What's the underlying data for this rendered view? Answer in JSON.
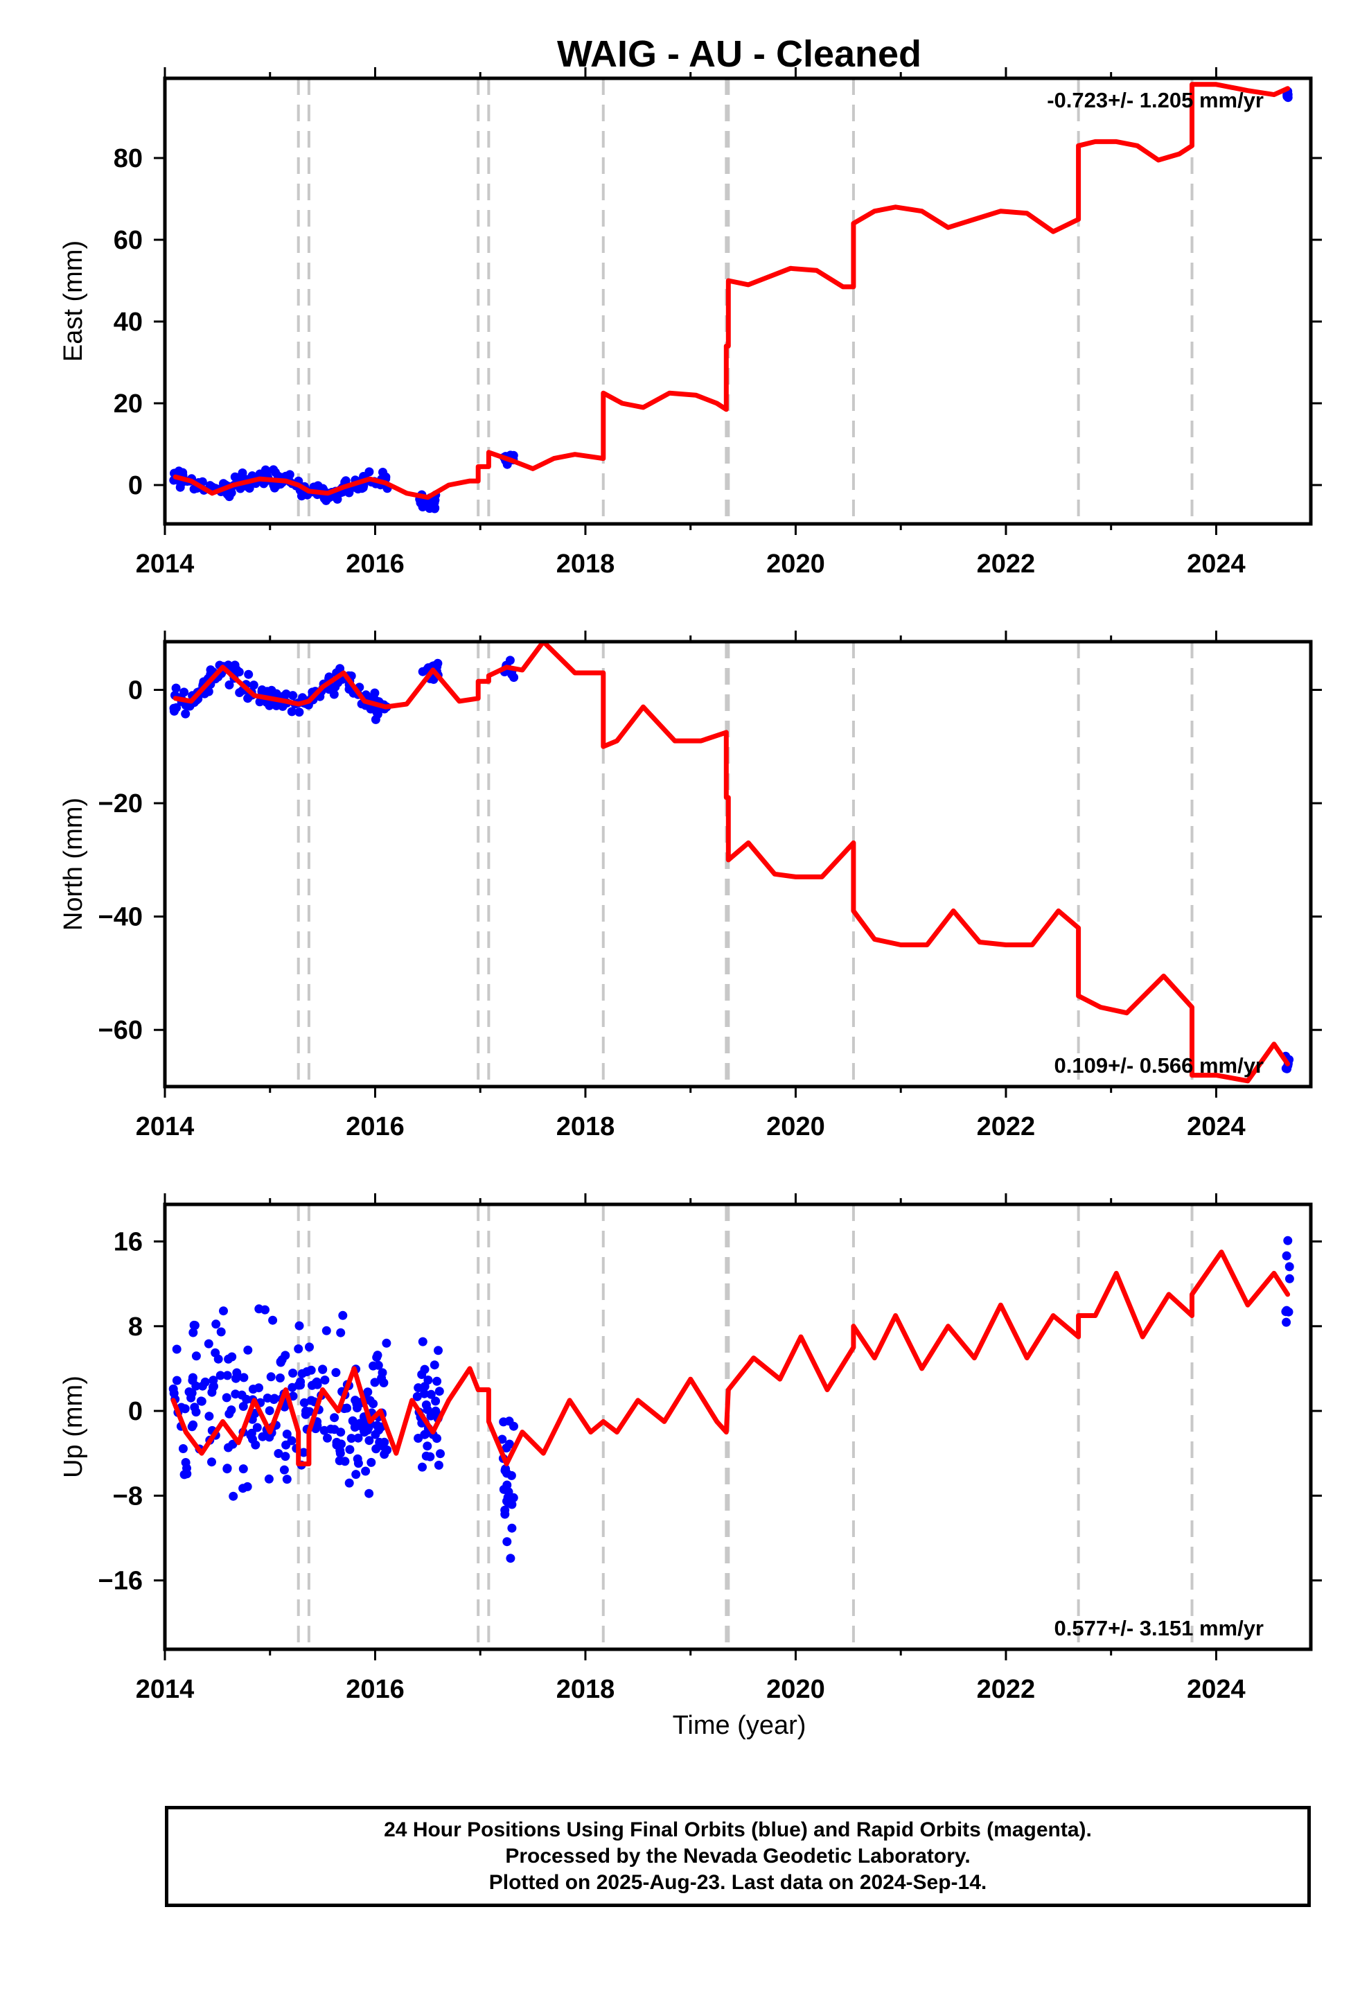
{
  "chart_data": {
    "type": "scatter",
    "title": "WAIG  - AU - Cleaned",
    "xlabel": "Time (year)",
    "xlim": [
      2014.0,
      2024.9
    ],
    "x_ticks": [
      "2014",
      "2016",
      "2018",
      "2020",
      "2022",
      "2024"
    ],
    "x_tick_values": [
      2014,
      2016,
      2018,
      2020,
      2022,
      2024
    ],
    "colors": {
      "points": "#0000ff",
      "model": "#ff0000",
      "events": "#c8c8c8",
      "axes": "#000000"
    },
    "event_lines": [
      2015.27,
      2015.37,
      2016.98,
      2017.08,
      2018.17,
      2019.34,
      2019.36,
      2020.55,
      2022.69,
      2023.77
    ],
    "panels": [
      {
        "id": "east",
        "ylabel": "East (mm)",
        "ylim": [
          -9.5,
          99.5
        ],
        "y_ticks": [
          "0",
          "20",
          "40",
          "60",
          "80"
        ],
        "y_tick_values": [
          0,
          20,
          40,
          60,
          80
        ],
        "rate_label": "-0.723+/- 1.205 mm/yr",
        "rate_position": "top-right",
        "model": {
          "name": "model fit",
          "x": [
            2014.1,
            2014.25,
            2014.45,
            2014.65,
            2014.9,
            2015.15,
            2015.27,
            2015.37,
            2015.55,
            2015.7,
            2015.95,
            2016.1,
            2016.3,
            2016.5,
            2016.7,
            2016.9,
            2016.98,
            2016.98,
            2017.08,
            2017.08,
            2017.3,
            2017.5,
            2017.7,
            2017.9,
            2018.17,
            2018.17,
            2018.35,
            2018.55,
            2018.8,
            2019.05,
            2019.25,
            2019.34,
            2019.34,
            2019.36,
            2019.36,
            2019.55,
            2019.75,
            2019.95,
            2020.2,
            2020.45,
            2020.55,
            2020.55,
            2020.75,
            2020.95,
            2021.2,
            2021.45,
            2021.7,
            2021.95,
            2022.2,
            2022.45,
            2022.69,
            2022.69,
            2022.85,
            2023.05,
            2023.25,
            2023.45,
            2023.65,
            2023.77,
            2023.77,
            2024.0,
            2024.3,
            2024.55,
            2024.68
          ],
          "y": [
            2,
            1,
            -2,
            0,
            1.5,
            1,
            0,
            -1.5,
            -2,
            -0.5,
            1.5,
            0.5,
            -2,
            -3,
            0,
            1,
            1,
            4.5,
            4.5,
            8,
            6,
            4,
            6.5,
            7.5,
            6.5,
            22.5,
            20,
            19,
            22.5,
            22,
            20,
            18.5,
            34,
            34,
            50,
            49,
            51,
            53,
            52.5,
            48.5,
            48.5,
            64,
            67,
            68,
            67,
            63,
            65,
            67,
            66.5,
            62,
            65,
            83,
            84,
            84,
            83,
            79.5,
            81,
            83,
            98,
            98,
            96.5,
            95.5,
            97
          ]
        },
        "clusters": [
          {
            "x_from": 2014.08,
            "x_to": 2016.12,
            "spread": 1.8,
            "follows_model": true,
            "count": 160
          },
          {
            "x_from": 2016.42,
            "x_to": 2016.58,
            "center": -4,
            "spread": 1.3,
            "count": 26
          },
          {
            "x_from": 2017.22,
            "x_to": 2017.32,
            "center": 6.5,
            "spread": 1.6,
            "count": 12
          },
          {
            "x_from": 2024.66,
            "x_to": 2024.7,
            "center": 95.5,
            "spread": 1.2,
            "count": 6
          }
        ]
      },
      {
        "id": "north",
        "ylabel": "North (mm)",
        "ylim": [
          -70,
          8.5
        ],
        "y_ticks": [
          "0",
          "−20",
          "−40",
          "−60"
        ],
        "y_tick_values": [
          0,
          -20,
          -40,
          -60
        ],
        "rate_label": "0.109+/- 0.566 mm/yr",
        "rate_position": "bottom-right",
        "model": {
          "name": "model fit",
          "x": [
            2014.1,
            2014.25,
            2014.55,
            2014.85,
            2015.15,
            2015.27,
            2015.37,
            2015.5,
            2015.7,
            2015.9,
            2016.1,
            2016.3,
            2016.55,
            2016.8,
            2016.98,
            2016.98,
            2017.08,
            2017.08,
            2017.25,
            2017.4,
            2017.6,
            2017.9,
            2018.17,
            2018.17,
            2018.3,
            2018.55,
            2018.85,
            2019.1,
            2019.34,
            2019.34,
            2019.36,
            2019.36,
            2019.55,
            2019.8,
            2020.0,
            2020.25,
            2020.55,
            2020.55,
            2020.75,
            2021.0,
            2021.25,
            2021.5,
            2021.75,
            2022.0,
            2022.25,
            2022.5,
            2022.69,
            2022.69,
            2022.9,
            2023.15,
            2023.5,
            2023.77,
            2023.77,
            2024.0,
            2024.3,
            2024.55,
            2024.68
          ],
          "y": [
            -1.5,
            -2,
            4,
            -1,
            -2,
            -2.5,
            -2,
            0.5,
            3,
            -2,
            -3,
            -2.5,
            3.5,
            -2,
            -1.5,
            1.5,
            1.5,
            2.5,
            4,
            3.5,
            8.5,
            3,
            3,
            -10,
            -9,
            -3,
            -9,
            -9,
            -7.5,
            -19,
            -19,
            -30,
            -27,
            -32.5,
            -33,
            -33,
            -27,
            -39,
            -44,
            -45,
            -45,
            -39,
            -44.5,
            -45,
            -45,
            -39,
            -42,
            -54,
            -56,
            -57,
            -50.5,
            -56,
            -68,
            -68,
            -69,
            -62.5,
            -66
          ]
        },
        "clusters": [
          {
            "x_from": 2014.08,
            "x_to": 2016.12,
            "spread": 1.8,
            "follows_model": true,
            "count": 160
          },
          {
            "x_from": 2016.45,
            "x_to": 2016.62,
            "center": 3.5,
            "spread": 1.3,
            "count": 22
          },
          {
            "x_from": 2017.2,
            "x_to": 2017.32,
            "center": 3.5,
            "spread": 1.6,
            "count": 10
          },
          {
            "x_from": 2024.66,
            "x_to": 2024.7,
            "center": -65.5,
            "spread": 1.5,
            "count": 6
          }
        ]
      },
      {
        "id": "up",
        "ylabel": "Up (mm)",
        "ylim": [
          -22.5,
          19.5
        ],
        "y_ticks": [
          "16",
          "8",
          "0",
          "−8",
          "−16"
        ],
        "y_tick_values": [
          16,
          8,
          0,
          -8,
          -16
        ],
        "rate_label": "0.577+/- 3.151 mm/yr",
        "rate_position": "bottom-right",
        "model": {
          "name": "model fit",
          "x": [
            2014.08,
            2014.2,
            2014.35,
            2014.55,
            2014.7,
            2014.85,
            2015.0,
            2015.15,
            2015.27,
            2015.27,
            2015.37,
            2015.37,
            2015.5,
            2015.65,
            2015.8,
            2015.95,
            2016.05,
            2016.2,
            2016.35,
            2016.55,
            2016.7,
            2016.9,
            2016.98,
            2016.98,
            2017.08,
            2017.08,
            2017.25,
            2017.4,
            2017.6,
            2017.85,
            2018.05,
            2018.17,
            2018.3,
            2018.5,
            2018.75,
            2019.0,
            2019.25,
            2019.34,
            2019.36,
            2019.6,
            2019.85,
            2020.05,
            2020.3,
            2020.55,
            2020.55,
            2020.75,
            2020.95,
            2021.2,
            2021.45,
            2021.7,
            2021.95,
            2022.2,
            2022.45,
            2022.69,
            2022.69,
            2022.85,
            2023.05,
            2023.3,
            2023.55,
            2023.77,
            2023.77,
            2024.05,
            2024.3,
            2024.55,
            2024.68
          ],
          "y": [
            1,
            -2,
            -4,
            -1,
            -3,
            1,
            -2,
            2,
            -2,
            -5,
            -5,
            -2,
            2,
            0,
            4,
            -1,
            0,
            -4,
            1,
            -2,
            1,
            4,
            2,
            2,
            2,
            -1,
            -5,
            -2,
            -4,
            1,
            -2,
            -1,
            -2,
            1,
            -1,
            3,
            -1,
            -2,
            2,
            5,
            3,
            7,
            2,
            6,
            8,
            5,
            9,
            4,
            8,
            5,
            10,
            5,
            9,
            7,
            9,
            9,
            13,
            7,
            11,
            9,
            11,
            15,
            10,
            13,
            11
          ]
        },
        "clusters": [
          {
            "x_from": 2014.08,
            "x_to": 2016.12,
            "center": 0,
            "spread": 6.5,
            "count": 230
          },
          {
            "x_from": 2016.4,
            "x_to": 2016.62,
            "center": 0,
            "spread": 5,
            "count": 40
          },
          {
            "x_from": 2017.2,
            "x_to": 2017.32,
            "center": -7,
            "spread": 5,
            "count": 24
          },
          {
            "x_from": 2024.66,
            "x_to": 2024.7,
            "center": 11,
            "spread": 3.5,
            "count": 8
          }
        ]
      }
    ]
  },
  "footer": {
    "line1": "24 Hour Positions Using Final Orbits (blue) and Rapid Orbits (magenta).",
    "line2": "Processed by the Nevada Geodetic Laboratory.",
    "line3": "Plotted on 2025-Aug-23. Last data on 2024-Sep-14."
  }
}
